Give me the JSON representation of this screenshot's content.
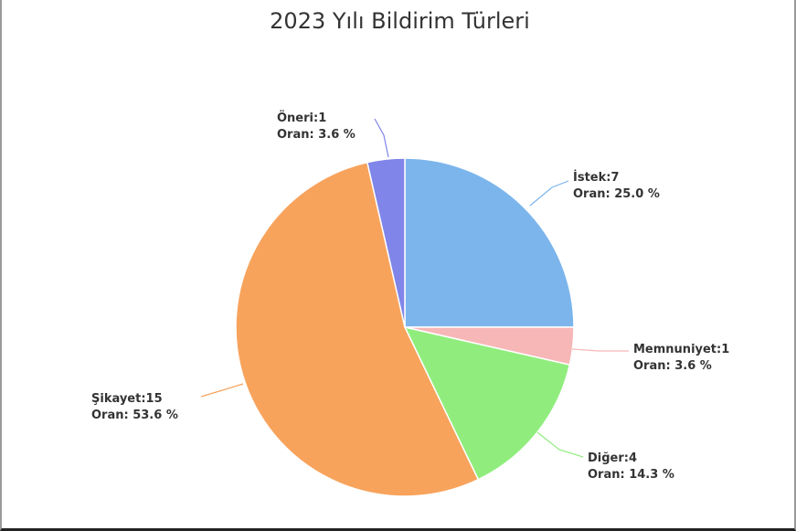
{
  "chart_data": {
    "type": "pie",
    "title": "2023 Yılı Bildirim Türleri",
    "slices": [
      {
        "name": "İstek",
        "value": 7,
        "percent": 25.0,
        "color": "#7cb5ec",
        "label_line1": "İstek:7",
        "label_line2": "Oran: 25.0 %"
      },
      {
        "name": "Memnuniyet",
        "value": 1,
        "percent": 3.6,
        "color": "#f7b7b7",
        "label_line1": "Memnuniyet:1",
        "label_line2": "Oran: 3.6 %"
      },
      {
        "name": "Diğer",
        "value": 4,
        "percent": 14.3,
        "color": "#90ed7d",
        "label_line1": "Diğer:4",
        "label_line2": "Oran: 14.3 %"
      },
      {
        "name": "Şikayet",
        "value": 15,
        "percent": 53.6,
        "color": "#f7a35c",
        "label_line1": "Şikayet:15",
        "label_line2": "Oran: 53.6 %"
      },
      {
        "name": "Öneri",
        "value": 1,
        "percent": 3.6,
        "color": "#8085e9",
        "label_line1": "Öneri:1",
        "label_line2": "Oran: 3.6 %"
      }
    ]
  }
}
